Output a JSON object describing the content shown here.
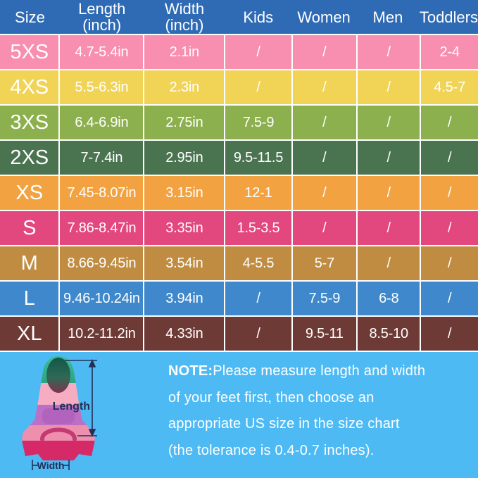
{
  "title": "Fin size chart",
  "colors": {
    "header_bg": "#2f6bb5",
    "grid_line": "#ffffff",
    "bottom_bg": "#4dbaf4",
    "table_text": "#ffffff",
    "annotation_text": "#233056"
  },
  "chart_data": {
    "type": "table",
    "columns": [
      {
        "label": "Size",
        "sub": ""
      },
      {
        "label": "Length",
        "sub": "(inch)"
      },
      {
        "label": "Width",
        "sub": "(inch)"
      },
      {
        "label": "Kids",
        "sub": ""
      },
      {
        "label": "Women",
        "sub": ""
      },
      {
        "label": "Men",
        "sub": ""
      },
      {
        "label": "Toddlers",
        "sub": ""
      }
    ],
    "rows": [
      {
        "size": "5XS",
        "length": "4.7-5.4in",
        "width": "2.1in",
        "kids": "/",
        "women": "/",
        "men": "/",
        "toddlers": "2-4",
        "color": "#f88fb0"
      },
      {
        "size": "4XS",
        "length": "5.5-6.3in",
        "width": "2.3in",
        "kids": "/",
        "women": "/",
        "men": "/",
        "toddlers": "4.5-7",
        "color": "#f1d456"
      },
      {
        "size": "3XS",
        "length": "6.4-6.9in",
        "width": "2.75in",
        "kids": "7.5-9",
        "women": "/",
        "men": "/",
        "toddlers": "/",
        "color": "#8db04e"
      },
      {
        "size": "2XS",
        "length": "7-7.4in",
        "width": "2.95in",
        "kids": "9.5-11.5",
        "women": "/",
        "men": "/",
        "toddlers": "/",
        "color": "#4a7350"
      },
      {
        "size": "XS",
        "length": "7.45-8.07in",
        "width": "3.15in",
        "kids": "12-1",
        "women": "/",
        "men": "/",
        "toddlers": "/",
        "color": "#f2a240"
      },
      {
        "size": "S",
        "length": "7.86-8.47in",
        "width": "3.35in",
        "kids": "1.5-3.5",
        "women": "/",
        "men": "/",
        "toddlers": "/",
        "color": "#e2477e"
      },
      {
        "size": "M",
        "length": "8.66-9.45in",
        "width": "3.54in",
        "kids": "4-5.5",
        "women": "5-7",
        "men": "/",
        "toddlers": "/",
        "color": "#c08c42"
      },
      {
        "size": "L",
        "length": "9.46-10.24in",
        "width": "3.94in",
        "kids": "/",
        "women": "7.5-9",
        "men": "6-8",
        "toddlers": "/",
        "color": "#3e88cb"
      },
      {
        "size": "XL",
        "length": "10.2-11.2in",
        "width": "4.33in",
        "kids": "/",
        "women": "9.5-11",
        "men": "8.5-10",
        "toddlers": "/",
        "color": "#6e3a36"
      }
    ]
  },
  "note": {
    "label": "NOTE:",
    "lines": [
      "Please measure length and width",
      "of your feet first, then choose an",
      "appropriate US size in the size chart",
      "(the tolerance is 0.4-0.7 inches)."
    ]
  },
  "fin": {
    "length_label": "Length",
    "width_label": "Width"
  }
}
